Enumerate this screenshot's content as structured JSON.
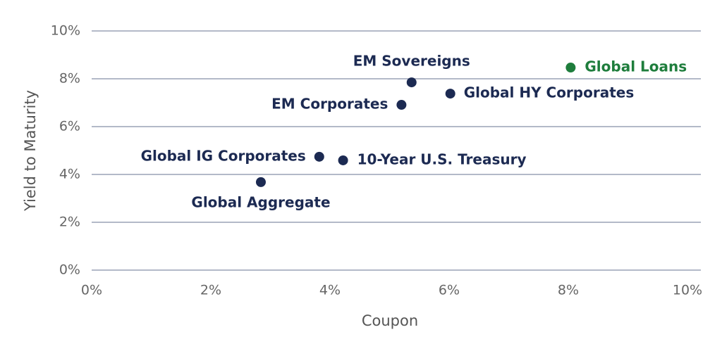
{
  "chart_data": {
    "type": "scatter",
    "x_label": "Coupon",
    "y_label": "Yield to Maturity",
    "labels": [
      "EM Sovereigns",
      "Global Loans",
      "Global HY Corporates",
      "EM Corporates",
      "Global IG Corporates",
      "10-Year U.S. Treasury",
      "Global Aggregate"
    ],
    "x": [
      5.37,
      8.04,
      6.02,
      5.2,
      3.82,
      4.22,
      2.84
    ],
    "y": [
      7.85,
      8.47,
      7.38,
      6.91,
      4.74,
      4.59,
      3.68
    ],
    "colors": [
      "#1c2a52",
      "#1e7d3c",
      "#1c2a52",
      "#1c2a52",
      "#1c2a52",
      "#1c2a52",
      "#1c2a52"
    ],
    "xlim": [
      0,
      10
    ],
    "ylim": [
      0,
      10
    ],
    "xticks": [
      {
        "value": 0,
        "label": "0%"
      },
      {
        "value": 2,
        "label": "2%"
      },
      {
        "value": 4,
        "label": "4%"
      },
      {
        "value": 6,
        "label": "6%"
      },
      {
        "value": 8,
        "label": "8%"
      },
      {
        "value": 10,
        "label": "10%"
      }
    ],
    "yticks": [
      {
        "value": 0,
        "label": "0%"
      },
      {
        "value": 2,
        "label": "2%"
      },
      {
        "value": 4,
        "label": "4%"
      },
      {
        "value": 6,
        "label": "6%"
      },
      {
        "value": 8,
        "label": "8%"
      },
      {
        "value": 10,
        "label": "10%"
      }
    ],
    "grid": true
  }
}
